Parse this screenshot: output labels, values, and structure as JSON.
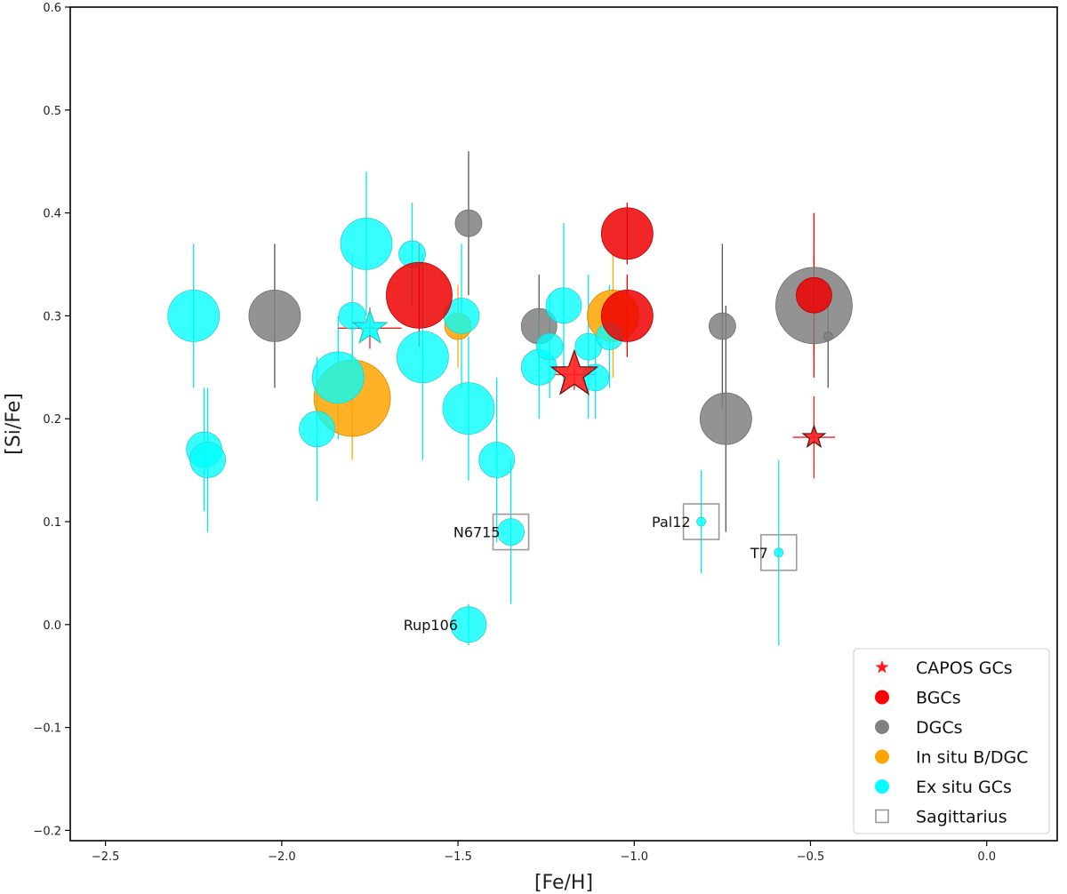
{
  "chart_data": {
    "type": "scatter",
    "title": "",
    "xlabel": "[Fe/H]",
    "ylabel": "[Si/Fe]",
    "xlim": [
      -2.6,
      0.2
    ],
    "ylim": [
      -0.21,
      0.6
    ],
    "xticks": [
      -2.5,
      -2.0,
      -1.5,
      -1.0,
      -0.5,
      0.0
    ],
    "xtick_labels": [
      "−2.5",
      "−2.0",
      "−1.5",
      "−1.0",
      "−0.5",
      "0.0"
    ],
    "yticks": [
      -0.2,
      -0.1,
      0.0,
      0.1,
      0.2,
      0.3,
      0.4,
      0.5,
      0.6
    ],
    "ytick_labels": [
      "−0.2",
      "−0.1",
      "0.0",
      "0.1",
      "0.2",
      "0.3",
      "0.4",
      "0.5",
      "0.6"
    ],
    "colors": {
      "CAPOS": "#ff1a1a",
      "BGC": "#ee0000",
      "DGC": "#808080",
      "InSitu": "#ffa500",
      "ExSitu": "#00ffff"
    },
    "legend": {
      "position": "lower-right",
      "entries": [
        {
          "label": "CAPOS GCs",
          "marker": "star",
          "color": "#ff1a1a"
        },
        {
          "label": "BGCs",
          "marker": "circle",
          "color": "#ff0000"
        },
        {
          "label": "DGCs",
          "marker": "circle",
          "color": "#808080"
        },
        {
          "label": "In situ B/DGC",
          "marker": "circle",
          "color": "#ffa500"
        },
        {
          "label": "Ex situ GCs",
          "marker": "circle",
          "color": "#00ffff"
        },
        {
          "label": "Sagittarius",
          "marker": "square",
          "color": "#999999"
        }
      ]
    },
    "series": [
      {
        "name": "DGCs",
        "group": "DGC",
        "points": [
          {
            "x": -2.02,
            "y": 0.3,
            "yerr": 0.07,
            "size": 3
          },
          {
            "x": -1.47,
            "y": 0.39,
            "yerr": 0.07,
            "size": 1
          },
          {
            "x": -1.27,
            "y": 0.29,
            "yerr": 0.05,
            "size": 2
          },
          {
            "x": -0.75,
            "y": 0.29,
            "yerr": 0.08,
            "size": 1
          },
          {
            "x": -0.74,
            "y": 0.2,
            "yerr": 0.11,
            "size": 3
          },
          {
            "x": -0.49,
            "y": 0.31,
            "yerr": 0.05,
            "size": 5
          },
          {
            "x": -0.45,
            "y": 0.28,
            "yerr": 0.05,
            "size": 0
          }
        ]
      },
      {
        "name": "In situ B/DGC",
        "group": "InSitu",
        "points": [
          {
            "x": -1.8,
            "y": 0.22,
            "yerr": 0.06,
            "size": 5
          },
          {
            "x": -1.5,
            "y": 0.29,
            "yerr": 0.04,
            "size": 1
          },
          {
            "x": -1.06,
            "y": 0.3,
            "yerr": 0.06,
            "size": 3
          }
        ]
      },
      {
        "name": "Ex situ GCs",
        "group": "ExSitu",
        "points": [
          {
            "x": -2.25,
            "y": 0.3,
            "yerr": 0.07,
            "size": 3
          },
          {
            "x": -2.22,
            "y": 0.17,
            "yerr": 0.06,
            "size": 2
          },
          {
            "x": -2.21,
            "y": 0.16,
            "yerr": 0.07,
            "size": 2
          },
          {
            "x": -1.9,
            "y": 0.19,
            "yerr": 0.07,
            "size": 2
          },
          {
            "x": -1.84,
            "y": 0.24,
            "yerr": 0.06,
            "size": 3
          },
          {
            "x": -1.8,
            "y": 0.3,
            "yerr": 0.06,
            "size": 1
          },
          {
            "x": -1.76,
            "y": 0.37,
            "yerr": 0.07,
            "size": 3
          },
          {
            "x": -1.63,
            "y": 0.36,
            "yerr": 0.05,
            "size": 1
          },
          {
            "x": -1.6,
            "y": 0.26,
            "yerr": 0.1,
            "size": 3
          },
          {
            "x": -1.49,
            "y": 0.3,
            "yerr": 0.07,
            "size": 2
          },
          {
            "x": -1.47,
            "y": 0.21,
            "yerr": 0.07,
            "size": 3
          },
          {
            "x": -1.39,
            "y": 0.16,
            "yerr": 0.08,
            "size": 2
          },
          {
            "x": -1.27,
            "y": 0.25,
            "yerr": 0.05,
            "size": 2
          },
          {
            "x": -1.24,
            "y": 0.27,
            "yerr": 0.05,
            "size": 1
          },
          {
            "x": -1.2,
            "y": 0.31,
            "yerr": 0.08,
            "size": 2
          },
          {
            "x": -1.13,
            "y": 0.27,
            "yerr": 0.07,
            "size": 1
          },
          {
            "x": -1.11,
            "y": 0.24,
            "yerr": 0.04,
            "size": 1
          },
          {
            "x": -1.07,
            "y": 0.28,
            "yerr": 0.05,
            "size": 1
          },
          {
            "x": -1.35,
            "y": 0.09,
            "yerr": 0.07,
            "size": 1,
            "label": "N6715",
            "sgr": true
          },
          {
            "x": -1.47,
            "y": 0.0,
            "yerr": 0.02,
            "size": 2,
            "label": "Rup106"
          },
          {
            "x": -0.81,
            "y": 0.1,
            "yerr": 0.05,
            "size": 0,
            "label": "Pal12",
            "sgr": true
          },
          {
            "x": -0.59,
            "y": 0.07,
            "yerr": 0.09,
            "size": 0,
            "label": "T7",
            "sgr": true
          }
        ]
      },
      {
        "name": "BGCs",
        "group": "BGC",
        "points": [
          {
            "x": -1.61,
            "y": 0.32,
            "yerr": 0.05,
            "size": 4
          },
          {
            "x": -1.02,
            "y": 0.38,
            "yerr": 0.03,
            "size": 3
          },
          {
            "x": -1.02,
            "y": 0.3,
            "yerr": 0.04,
            "size": 3
          },
          {
            "x": -0.49,
            "y": 0.32,
            "yerr": 0.08,
            "size": 2
          }
        ]
      },
      {
        "name": "CAPOS GCs",
        "group": "CAPOS",
        "points": [
          {
            "x": -1.75,
            "y": 0.288,
            "xerr": 0.09,
            "yerr": 0.02,
            "size": 3,
            "fill": "#00ffff"
          },
          {
            "x": -1.17,
            "y": 0.243,
            "xerr": 0.06,
            "yerr": 0.015,
            "size": 4,
            "fill": "#ff1a1a"
          },
          {
            "x": -0.49,
            "y": 0.182,
            "xerr": 0.06,
            "yerr": 0.04,
            "size": 1,
            "fill": "#ff1a1a"
          }
        ]
      }
    ]
  }
}
